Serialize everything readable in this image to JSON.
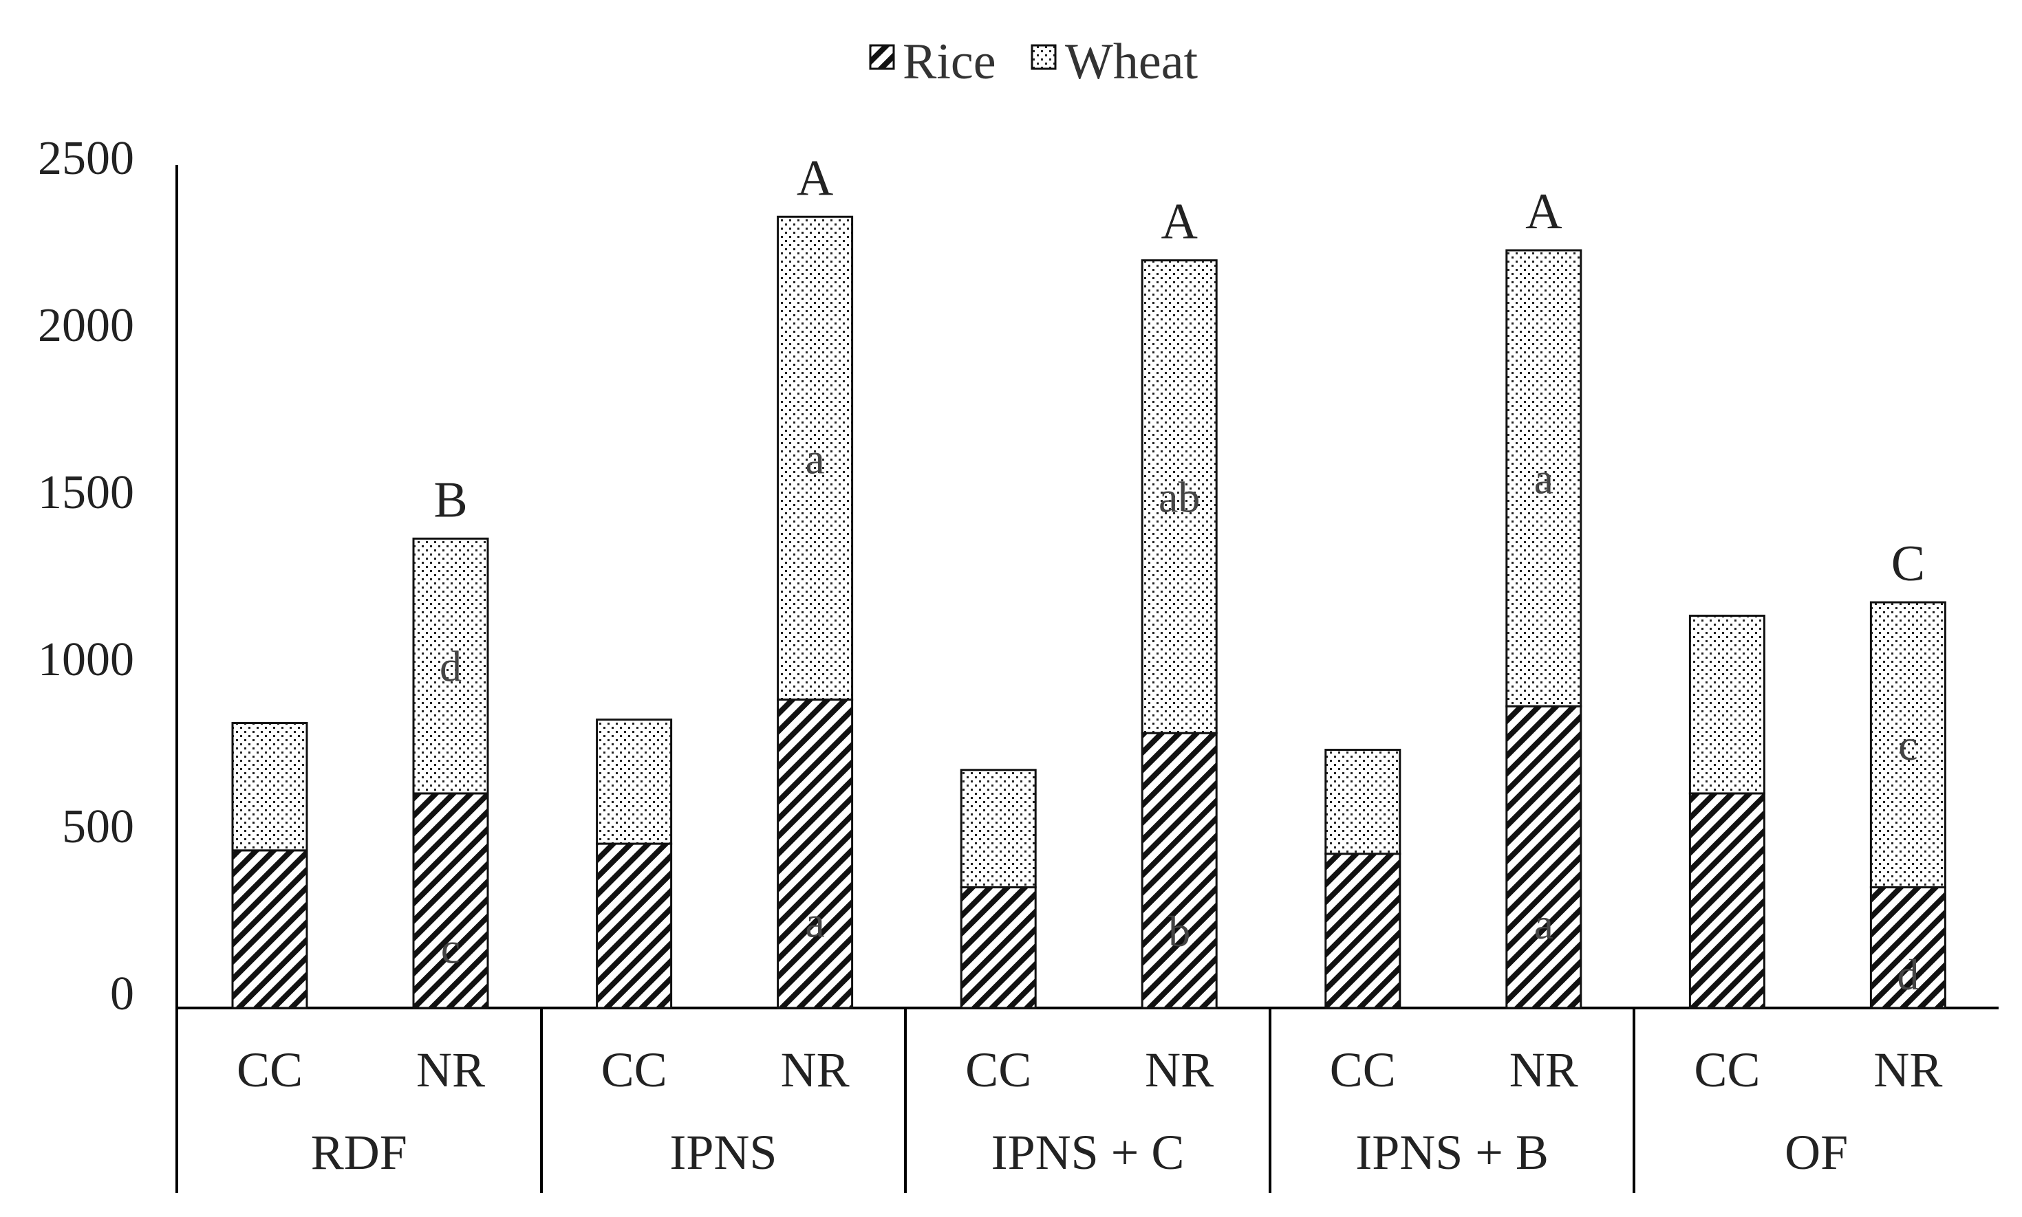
{
  "chart_data": {
    "type": "bar",
    "stacked": true,
    "title": "",
    "xlabel": "",
    "ylabel": "",
    "ylim": [
      0,
      2500
    ],
    "yticks": [
      "0",
      "500",
      "1000",
      "1500",
      "2000",
      "2500"
    ],
    "legend": {
      "position": "top-center",
      "entries": [
        "Rice",
        "Wheat"
      ]
    },
    "groups": [
      "RDF",
      "IPNS",
      "IPNS + C",
      "IPNS + B",
      "OF"
    ],
    "subcategories": [
      "CC",
      "NR"
    ],
    "series": [
      {
        "name": "Rice",
        "pattern": "diagonal-hatch",
        "values": [
          470,
          640,
          490,
          920,
          360,
          820,
          460,
          900,
          640,
          360
        ]
      },
      {
        "name": "Wheat",
        "pattern": "dotted",
        "values": [
          380,
          760,
          370,
          1440,
          350,
          1410,
          310,
          1360,
          530,
          850
        ]
      }
    ],
    "rice_letters": [
      "",
      "c",
      "",
      "a",
      "",
      "b",
      "",
      "a",
      "",
      "d"
    ],
    "wheat_letters": [
      "",
      "d",
      "",
      "a",
      "",
      "ab",
      "",
      "a",
      "",
      "c"
    ],
    "total_letters": [
      "",
      "B",
      "",
      "A",
      "",
      "A",
      "",
      "A",
      "",
      "C"
    ]
  }
}
